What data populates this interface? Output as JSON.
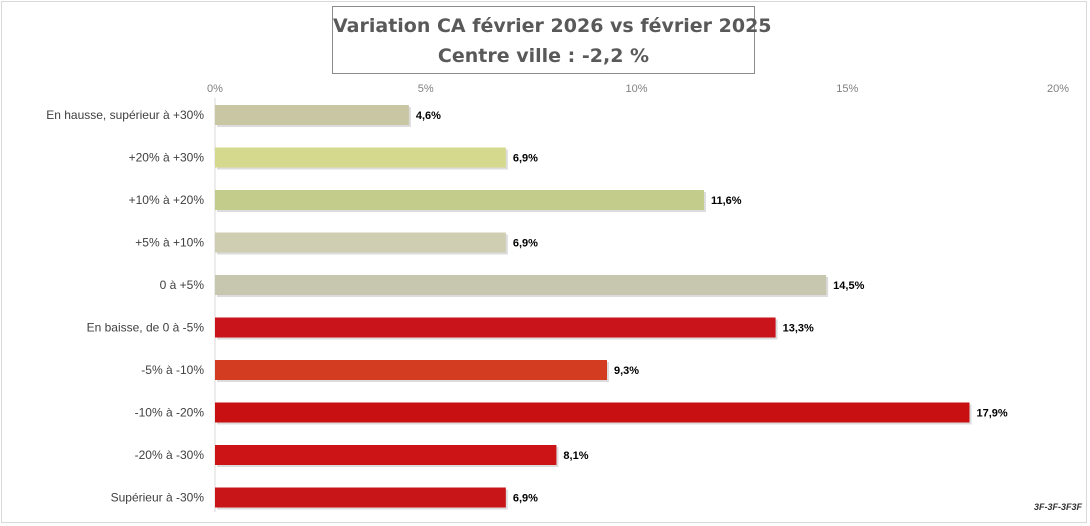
{
  "chart_data": {
    "type": "bar",
    "orientation": "horizontal",
    "title": "Variation CA février 2026 vs février 2025",
    "subtitle": "Centre ville  : -2,2 %",
    "xlabel": "",
    "ylabel": "",
    "xlim": [
      0,
      20
    ],
    "x_ticks": [
      "0%",
      "5%",
      "10%",
      "15%",
      "20%"
    ],
    "grid": false,
    "legend": "none",
    "categories": [
      "En hausse, supérieur à +30%",
      "+20% à +30%",
      "+10% à +20%",
      "+5% à +10%",
      "0 à +5%",
      "En baisse, de 0 à -5%",
      "-5% à -10%",
      "-10% à -20%",
      "-20% à -30%",
      "Supérieur à -30%"
    ],
    "values": [
      4.6,
      6.9,
      11.6,
      6.9,
      14.5,
      13.3,
      9.3,
      17.9,
      8.1,
      6.9
    ],
    "value_labels": [
      "4,6%",
      "6,9%",
      "11,6%",
      "6,9%",
      "14,5%",
      "13,3%",
      "9,3%",
      "17,9%",
      "8,1%",
      "6,9%"
    ],
    "colors": [
      "#c9c6a4",
      "#d4d98e",
      "#c4cc8c",
      "#cfcdb2",
      "#c7c6ae",
      "#c8141a",
      "#d43c21",
      "#c80f12",
      "#cc1416",
      "#c81517"
    ]
  },
  "watermark": "3F-3F-3F3F"
}
